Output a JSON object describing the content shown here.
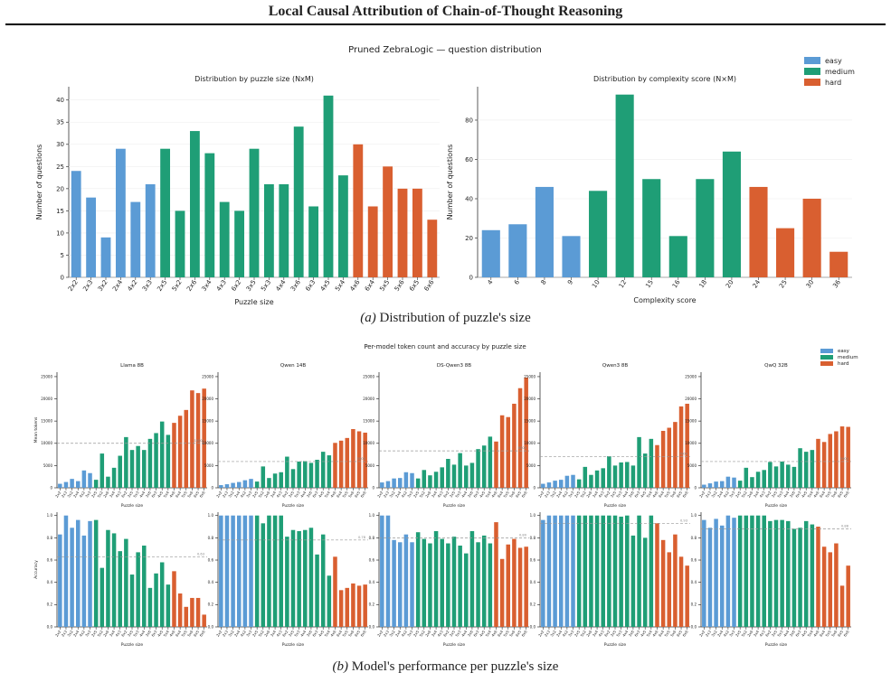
{
  "page": {
    "title": "Local Causal Attribution of Chain-of-Thought Reasoning"
  },
  "captions": {
    "a_label": "(a)",
    "a_text": " Distribution of puzzle's size",
    "b_label": "(b)",
    "b_text": " Model's performance per puzzle's size"
  },
  "colors": {
    "easy": "#5b9bd5",
    "medium": "#1f9e76",
    "hard": "#d95f30",
    "refline": "#999999"
  },
  "figure_a": {
    "suptitle": "Pruned ZebraLogic — question distribution",
    "legend": [
      "easy",
      "medium",
      "hard"
    ]
  },
  "figure_b": {
    "suptitle": "Per-model token count and accuracy by puzzle size",
    "legend": [
      "easy",
      "medium",
      "hard"
    ]
  },
  "chart_data": [
    {
      "id": "size_dist",
      "type": "bar",
      "title": "Distribution by puzzle size (NxM)",
      "xlabel": "Puzzle size",
      "ylabel": "Number of questions",
      "ylim": [
        0,
        43
      ],
      "yticks": [
        0,
        5,
        10,
        15,
        20,
        25,
        30,
        35,
        40
      ],
      "categories": [
        "2x2",
        "2x3",
        "3x2",
        "2x4",
        "4x2",
        "3x3",
        "2x5",
        "5x2",
        "2x6",
        "3x4",
        "4x3",
        "6x2",
        "3x5",
        "5x3",
        "4x4",
        "3x6",
        "6x3",
        "4x5",
        "5x4",
        "4x6",
        "6x4",
        "5x5",
        "5x6",
        "6x5",
        "6x6"
      ],
      "values": [
        24,
        18,
        9,
        29,
        17,
        21,
        29,
        15,
        33,
        28,
        17,
        15,
        29,
        21,
        21,
        34,
        16,
        41,
        23,
        30,
        16,
        25,
        20,
        20,
        13
      ],
      "difficulty": [
        "easy",
        "easy",
        "easy",
        "easy",
        "easy",
        "easy",
        "medium",
        "medium",
        "medium",
        "medium",
        "medium",
        "medium",
        "medium",
        "medium",
        "medium",
        "medium",
        "medium",
        "medium",
        "medium",
        "hard",
        "hard",
        "hard",
        "hard",
        "hard",
        "hard"
      ]
    },
    {
      "id": "complexity_dist",
      "type": "bar",
      "title": "Distribution by complexity score (N×M)",
      "xlabel": "Complexity score",
      "ylabel": "Number of questions",
      "ylim": [
        0,
        97
      ],
      "yticks": [
        0,
        20,
        40,
        60,
        80
      ],
      "categories": [
        "4",
        "6",
        "8",
        "9",
        "10",
        "12",
        "15",
        "16",
        "18",
        "20",
        "24",
        "25",
        "30",
        "36"
      ],
      "values": [
        24,
        27,
        46,
        21,
        44,
        93,
        50,
        21,
        50,
        64,
        46,
        25,
        40,
        13
      ],
      "difficulty": [
        "easy",
        "easy",
        "easy",
        "easy",
        "medium",
        "medium",
        "medium",
        "medium",
        "medium",
        "medium",
        "hard",
        "hard",
        "hard",
        "hard"
      ]
    },
    {
      "id": "model_tokens",
      "type": "bar",
      "ylabel": "Mean tokens",
      "xlabel": "Puzzle size",
      "ylim": [
        0,
        26000
      ],
      "yticks": [
        0,
        5000,
        10000,
        15000,
        20000,
        25000
      ],
      "ytick_labels": [
        "0",
        "5000",
        "10000",
        "15000",
        "20000",
        "25000"
      ],
      "categories": [
        "2x2",
        "2x3",
        "3x2",
        "2x4",
        "4x2",
        "3x3",
        "2x5",
        "5x2",
        "2x6",
        "3x4",
        "4x3",
        "6x2",
        "3x5",
        "5x3",
        "4x4",
        "3x6",
        "6x3",
        "4x5",
        "5x4",
        "4x6",
        "6x4",
        "5x5",
        "5x6",
        "6x5",
        "6x6"
      ],
      "difficulty": [
        "easy",
        "easy",
        "easy",
        "easy",
        "easy",
        "easy",
        "medium",
        "medium",
        "medium",
        "medium",
        "medium",
        "medium",
        "medium",
        "medium",
        "medium",
        "medium",
        "medium",
        "medium",
        "medium",
        "hard",
        "hard",
        "hard",
        "hard",
        "hard",
        "hard"
      ],
      "series": [
        {
          "name": "Llama 8B",
          "values": [
            900,
            1300,
            2000,
            1500,
            3900,
            3300,
            1800,
            7700,
            2500,
            4500,
            7200,
            11400,
            8500,
            9400,
            8500,
            11000,
            12300,
            14900,
            11900,
            14600,
            16200,
            17500,
            21900,
            21300,
            22300
          ],
          "ref": 10000,
          "ref_label": "10000"
        },
        {
          "name": "Qwen 14B",
          "values": [
            600,
            800,
            1100,
            1300,
            1700,
            2000,
            1400,
            4800,
            2200,
            3200,
            3500,
            7000,
            4200,
            5900,
            6000,
            5600,
            6300,
            8100,
            7300,
            10100,
            10600,
            11200,
            13200,
            12700,
            12400
          ],
          "ref": 5900,
          "ref_label": "5900"
        },
        {
          "name": "DS-Qwen3 8B",
          "values": [
            1200,
            1500,
            2100,
            2200,
            3500,
            3300,
            2100,
            4000,
            2800,
            3600,
            4600,
            6500,
            5200,
            7800,
            5000,
            5600,
            8700,
            9500,
            11500,
            10400,
            16300,
            15900,
            18900,
            22400,
            24800
          ],
          "ref": 8300,
          "ref_label": "8300"
        },
        {
          "name": "Qwen3 8B",
          "values": [
            900,
            1200,
            1600,
            1800,
            2700,
            2900,
            1900,
            4700,
            2900,
            3900,
            4400,
            7100,
            5000,
            5700,
            5800,
            5000,
            11400,
            7700,
            11000,
            9600,
            12800,
            13500,
            14800,
            18300,
            18900
          ],
          "ref": 7000,
          "ref_label": "7000"
        },
        {
          "name": "QwQ 32B",
          "values": [
            700,
            1000,
            1400,
            1500,
            2500,
            2300,
            1600,
            4500,
            2400,
            3600,
            4000,
            5800,
            4800,
            5900,
            5200,
            4700,
            8900,
            8100,
            8500,
            11000,
            10300,
            12100,
            12700,
            13800,
            13700
          ],
          "ref": 5900,
          "ref_label": "5900"
        }
      ]
    },
    {
      "id": "model_accuracy",
      "type": "bar",
      "ylabel": "Accuracy",
      "xlabel": "Puzzle size",
      "ylim": [
        0,
        1.03
      ],
      "yticks": [
        0,
        0.2,
        0.4,
        0.6,
        0.8,
        1.0
      ],
      "ytick_labels": [
        "0.0",
        "0.2",
        "0.4",
        "0.6",
        "0.8",
        "1.0"
      ],
      "categories": [
        "2x2",
        "2x3",
        "3x2",
        "2x4",
        "4x2",
        "3x3",
        "2x5",
        "5x2",
        "2x6",
        "3x4",
        "4x3",
        "6x2",
        "3x5",
        "5x3",
        "4x4",
        "3x6",
        "6x3",
        "4x5",
        "5x4",
        "4x6",
        "6x4",
        "5x5",
        "5x6",
        "6x5",
        "6x6"
      ],
      "difficulty": [
        "easy",
        "easy",
        "easy",
        "easy",
        "easy",
        "easy",
        "medium",
        "medium",
        "medium",
        "medium",
        "medium",
        "medium",
        "medium",
        "medium",
        "medium",
        "medium",
        "medium",
        "medium",
        "medium",
        "hard",
        "hard",
        "hard",
        "hard",
        "hard",
        "hard"
      ],
      "series": [
        {
          "name": "Llama 8B",
          "values": [
            0.83,
            1.0,
            0.89,
            0.96,
            0.82,
            0.95,
            0.96,
            0.53,
            0.87,
            0.84,
            0.68,
            0.79,
            0.47,
            0.67,
            0.73,
            0.35,
            0.48,
            0.58,
            0.38,
            0.5,
            0.3,
            0.18,
            0.26,
            0.26,
            0.11
          ],
          "ref": 0.63,
          "ref_label": "0.63"
        },
        {
          "name": "Qwen 14B",
          "values": [
            1.0,
            1.0,
            1.0,
            1.0,
            1.0,
            1.0,
            1.0,
            0.93,
            1.0,
            1.0,
            1.0,
            0.81,
            0.87,
            0.86,
            0.87,
            0.89,
            0.65,
            0.83,
            0.46,
            0.63,
            0.33,
            0.35,
            0.39,
            0.37,
            0.38
          ],
          "ref": 0.78,
          "ref_label": "0.78"
        },
        {
          "name": "DS-Qwen3 8B",
          "values": [
            1.0,
            1.0,
            0.78,
            0.76,
            0.83,
            0.76,
            0.85,
            0.79,
            0.75,
            0.86,
            0.79,
            0.75,
            0.81,
            0.73,
            0.66,
            0.86,
            0.76,
            0.82,
            0.75,
            0.94,
            0.61,
            0.74,
            0.79,
            0.71,
            0.72
          ],
          "ref": 0.8,
          "ref_label": "0.80"
        },
        {
          "name": "Qwen3 8B",
          "values": [
            0.96,
            1.0,
            1.0,
            1.0,
            1.0,
            1.0,
            1.0,
            1.0,
            1.0,
            1.0,
            1.0,
            1.0,
            1.0,
            0.99,
            1.0,
            0.82,
            1.0,
            0.8,
            1.0,
            0.93,
            0.78,
            0.67,
            0.83,
            0.63,
            0.55
          ],
          "ref": 0.93,
          "ref_label": "0.93"
        },
        {
          "name": "QwQ 32B",
          "values": [
            0.96,
            0.89,
            0.97,
            0.91,
            1.0,
            0.98,
            1.0,
            1.0,
            1.0,
            1.0,
            1.0,
            0.95,
            0.96,
            0.96,
            0.95,
            0.88,
            0.89,
            0.95,
            0.92,
            0.9,
            0.72,
            0.67,
            0.75,
            0.37,
            0.55
          ],
          "ref": 0.88,
          "ref_label": "0.88"
        }
      ]
    }
  ]
}
